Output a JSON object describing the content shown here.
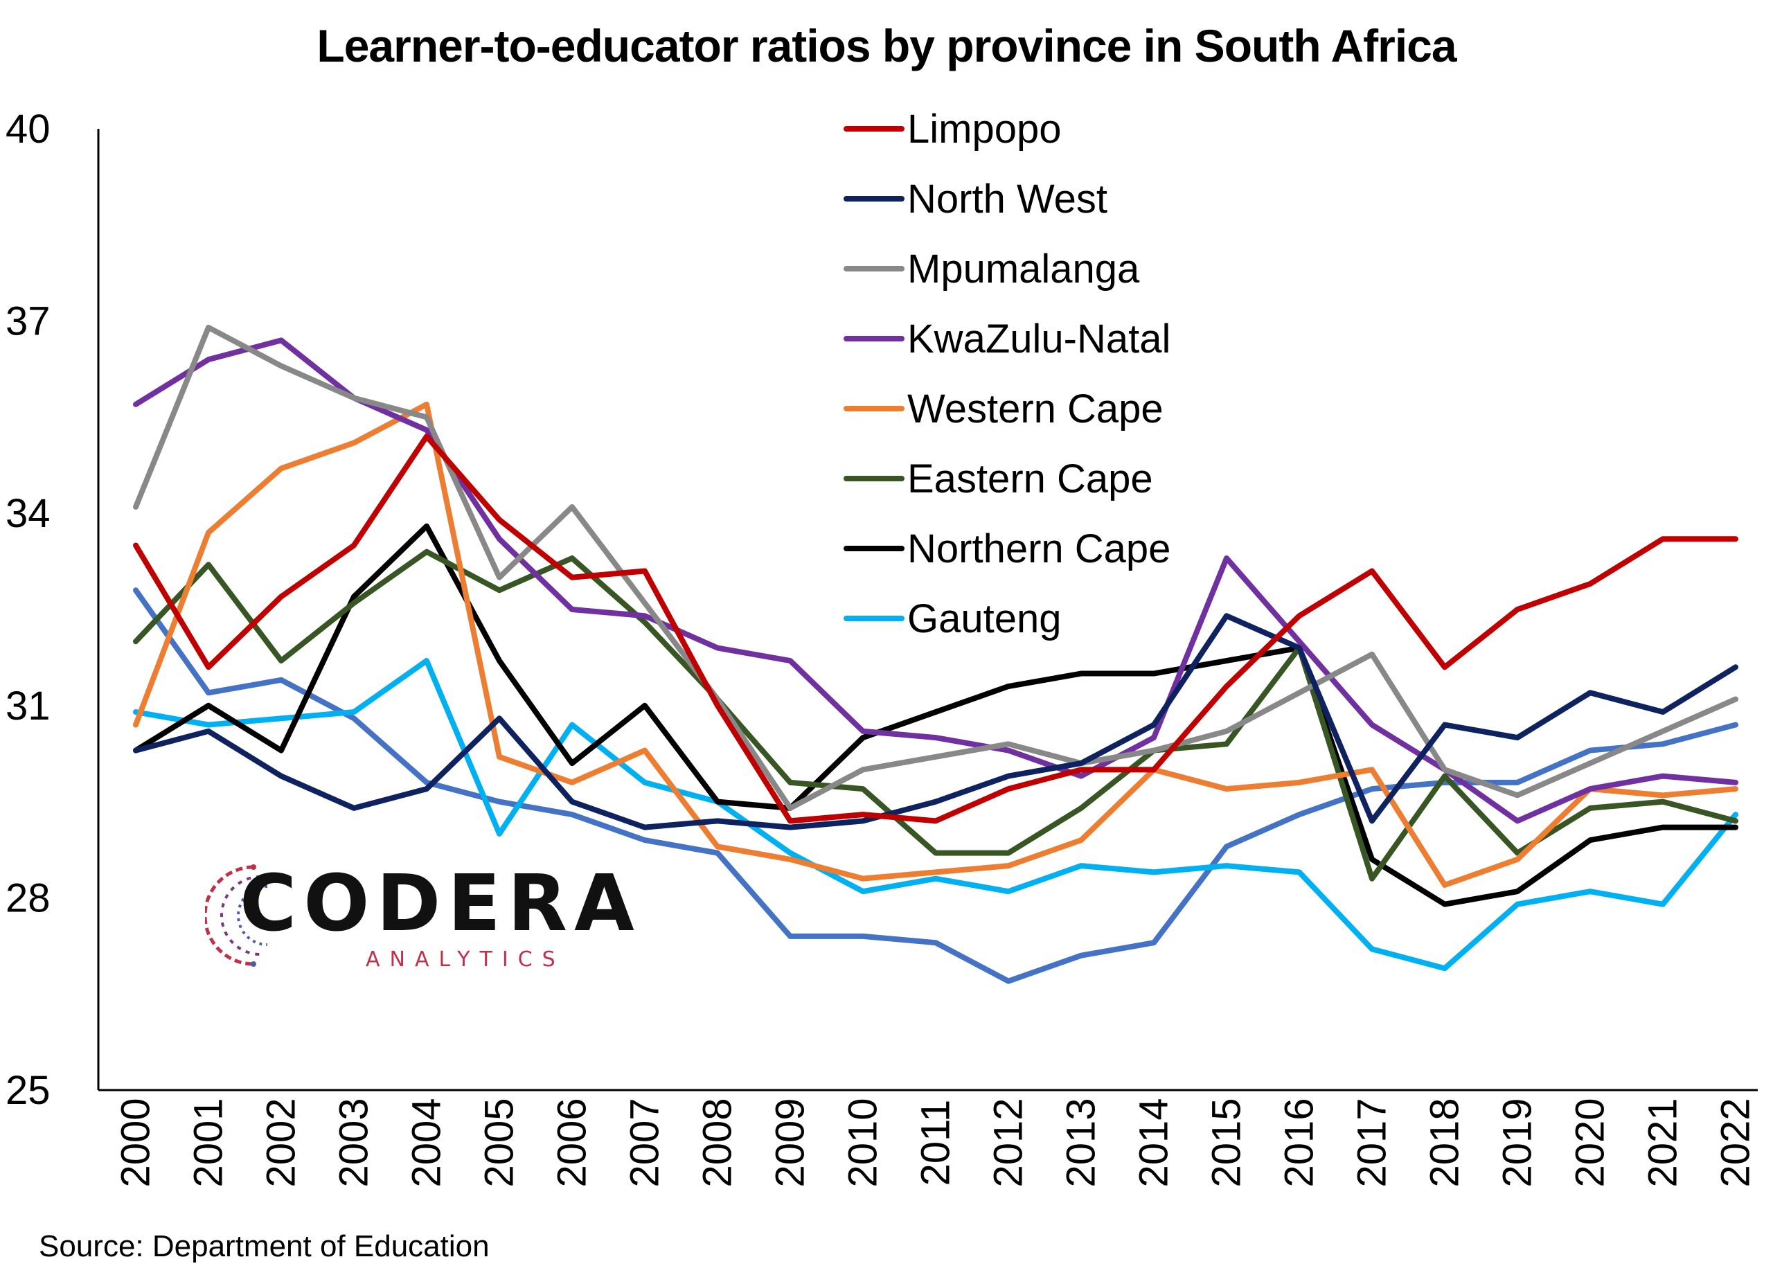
{
  "chart_data": {
    "type": "line",
    "title": "Learner-to-educator ratios by province in South Africa",
    "xlabel": "",
    "ylabel": "",
    "ylim": [
      25,
      40
    ],
    "yticks": [
      "40",
      "37",
      "34",
      "31",
      "28",
      "25"
    ],
    "x": [
      "2000",
      "2001",
      "2002",
      "2003",
      "2004",
      "2005",
      "2006",
      "2007",
      "2008",
      "2009",
      "2010",
      "2011",
      "2012",
      "2013",
      "2014",
      "2015",
      "2016",
      "2017",
      "2018",
      "2019",
      "2020",
      "2021",
      "2022"
    ],
    "legend_position": "top-center",
    "grid": false,
    "series": [
      {
        "name": "Limpopo",
        "color": "#c00000",
        "values": [
          33.5,
          31.6,
          32.7,
          33.5,
          35.2,
          33.9,
          33.0,
          33.1,
          31.0,
          29.2,
          29.3,
          29.2,
          29.7,
          30.0,
          30.0,
          31.3,
          32.4,
          33.1,
          31.6,
          32.5,
          32.9,
          33.6,
          33.6
        ]
      },
      {
        "name": "North West",
        "color": "#0f2260",
        "values": [
          30.3,
          30.6,
          29.9,
          29.4,
          29.7,
          30.8,
          29.5,
          29.1,
          29.2,
          29.1,
          29.2,
          29.5,
          29.9,
          30.1,
          30.7,
          32.4,
          31.9,
          29.2,
          30.7,
          30.5,
          31.2,
          30.9,
          31.6
        ]
      },
      {
        "name": "Mpumalanga",
        "color": "#888888",
        "values": [
          34.1,
          36.9,
          36.3,
          35.8,
          35.5,
          33.0,
          34.1,
          32.6,
          31.1,
          29.4,
          30.0,
          30.2,
          30.4,
          30.1,
          30.3,
          30.6,
          31.2,
          31.8,
          30.0,
          29.6,
          30.1,
          30.6,
          31.1
        ]
      },
      {
        "name": "KwaZulu-Natal",
        "color": "#7030a0",
        "values": [
          35.7,
          36.4,
          36.7,
          35.8,
          35.3,
          33.6,
          32.5,
          32.4,
          31.9,
          31.7,
          30.6,
          30.5,
          30.3,
          29.9,
          30.5,
          33.3,
          32.0,
          30.7,
          30.0,
          29.2,
          29.7,
          29.9,
          29.8
        ]
      },
      {
        "name": "Western Cape",
        "color": "#ed7d31",
        "values": [
          30.7,
          33.7,
          34.7,
          35.1,
          35.7,
          30.2,
          29.8,
          30.3,
          28.8,
          28.6,
          28.3,
          28.4,
          28.5,
          28.9,
          30.0,
          29.7,
          29.8,
          30.0,
          28.2,
          28.6,
          29.7,
          29.6,
          29.7
        ]
      },
      {
        "name": "Eastern Cape",
        "color": "#375623",
        "values": [
          32.0,
          33.2,
          31.7,
          32.6,
          33.4,
          32.8,
          33.3,
          32.3,
          31.1,
          29.8,
          29.7,
          28.7,
          28.7,
          29.4,
          30.3,
          30.4,
          31.9,
          28.3,
          29.9,
          28.7,
          29.4,
          29.5,
          29.2
        ]
      },
      {
        "name": "Northern Cape",
        "color": "#000000",
        "values": [
          30.3,
          31.0,
          30.3,
          32.7,
          33.8,
          31.7,
          30.1,
          31.0,
          29.5,
          29.4,
          30.5,
          30.9,
          31.3,
          31.5,
          31.5,
          31.7,
          31.9,
          28.6,
          27.9,
          28.1,
          28.9,
          29.1,
          29.1
        ]
      },
      {
        "name": "Gauteng",
        "color": "#00b0f0",
        "values": [
          30.9,
          30.7,
          30.8,
          30.9,
          31.7,
          29.0,
          30.7,
          29.8,
          29.5,
          28.7,
          28.1,
          28.3,
          28.1,
          28.5,
          28.4,
          28.5,
          28.4,
          27.2,
          26.9,
          27.9,
          28.1,
          27.9,
          29.3
        ]
      },
      {
        "color": "#4472c4",
        "values": [
          32.8,
          31.2,
          31.4,
          30.8,
          29.8,
          29.5,
          29.3,
          28.9,
          28.7,
          27.4,
          27.4,
          27.3,
          26.7,
          27.1,
          27.3,
          28.8,
          29.3,
          29.7,
          29.8,
          29.8,
          30.3,
          30.4,
          30.7
        ]
      }
    ]
  },
  "source": "Source: Department of Education",
  "logo": {
    "word": "CODERA",
    "sub": "ANALYTICS",
    "accent": "#c0304a",
    "accent2": "#4a5ea8"
  }
}
